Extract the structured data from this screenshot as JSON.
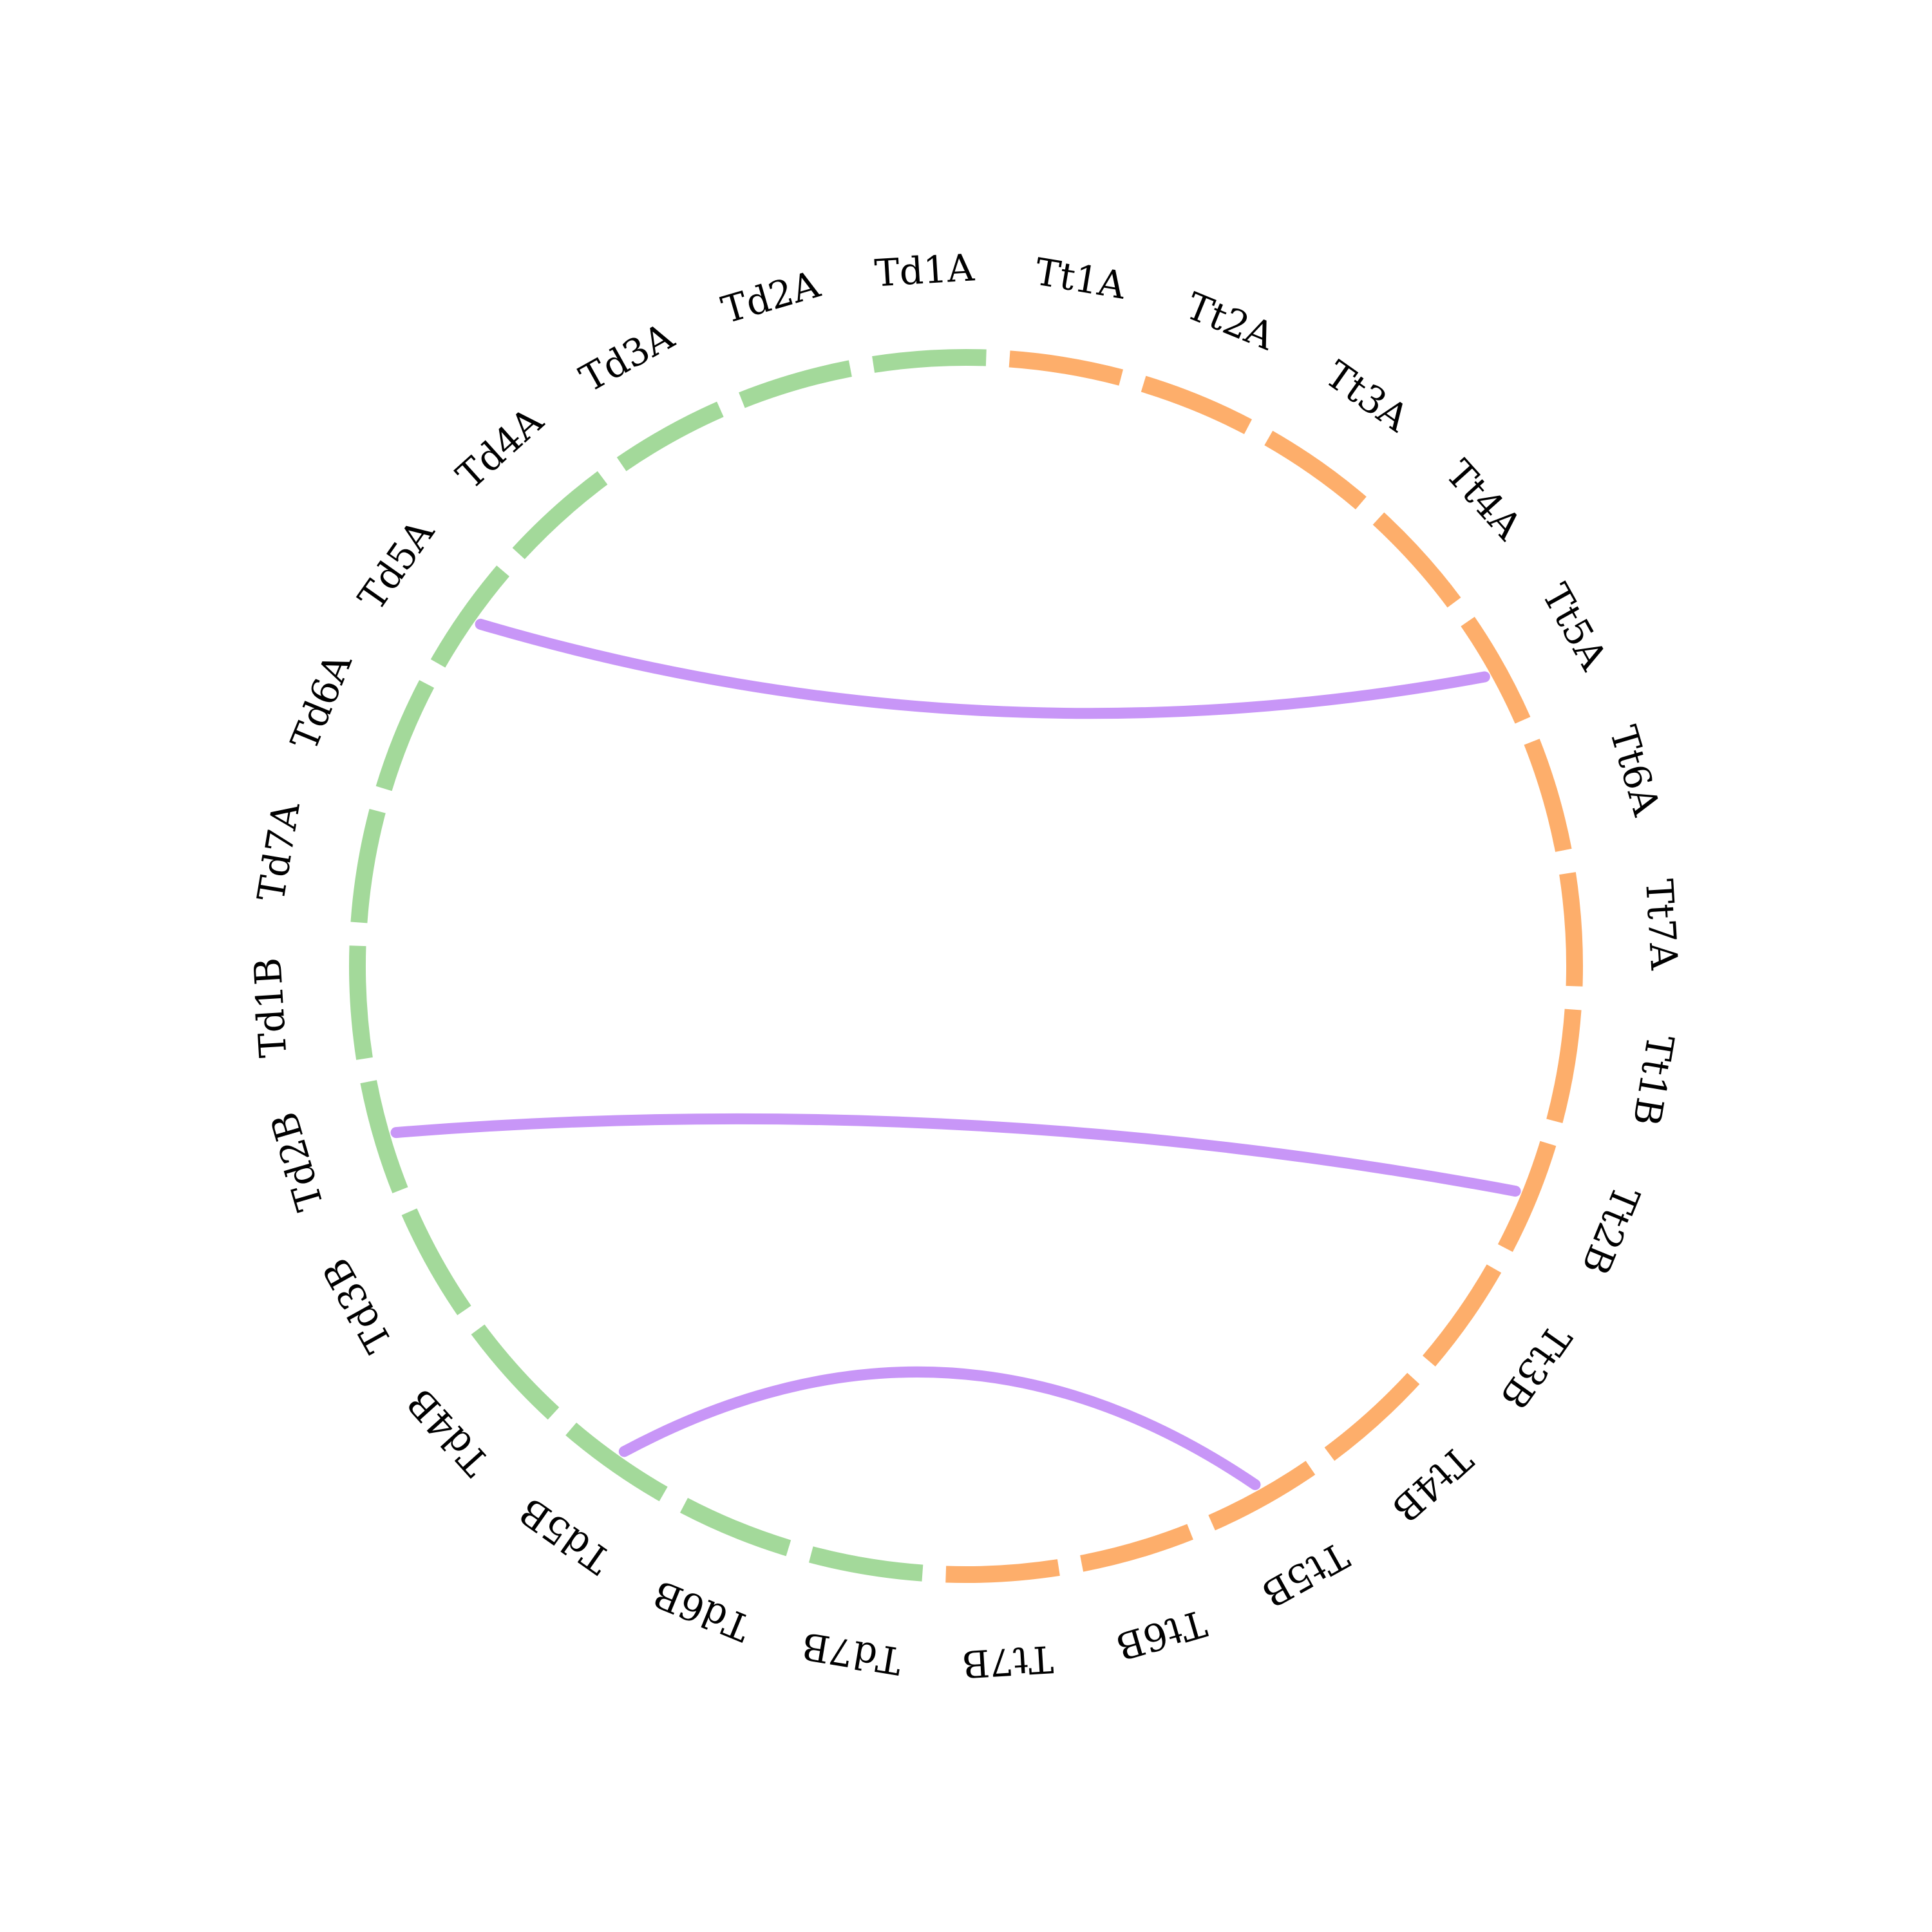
{
  "diagram": {
    "groups": [
      {
        "name": "Td",
        "color": "#a3d99a"
      },
      {
        "name": "Tt",
        "color": "#fdae6b"
      }
    ],
    "link_color": "#c896f7",
    "segments": [
      {
        "label": "Tt1A",
        "group": "Tt"
      },
      {
        "label": "Tt2A",
        "group": "Tt"
      },
      {
        "label": "Tt3A",
        "group": "Tt"
      },
      {
        "label": "Tt4A",
        "group": "Tt"
      },
      {
        "label": "Tt5A",
        "group": "Tt"
      },
      {
        "label": "Tt6A",
        "group": "Tt"
      },
      {
        "label": "Tt7A",
        "group": "Tt"
      },
      {
        "label": "Tt1B",
        "group": "Tt"
      },
      {
        "label": "Tt2B",
        "group": "Tt"
      },
      {
        "label": "Tt3B",
        "group": "Tt"
      },
      {
        "label": "Tt4B",
        "group": "Tt"
      },
      {
        "label": "Tt5B",
        "group": "Tt"
      },
      {
        "label": "Tt6B",
        "group": "Tt"
      },
      {
        "label": "Tt7B",
        "group": "Tt"
      },
      {
        "label": "Td7B",
        "group": "Td"
      },
      {
        "label": "Td6B",
        "group": "Td"
      },
      {
        "label": "Td5B",
        "group": "Td"
      },
      {
        "label": "Td4B",
        "group": "Td"
      },
      {
        "label": "Td3B",
        "group": "Td"
      },
      {
        "label": "Td2B",
        "group": "Td"
      },
      {
        "label": "Td1B",
        "group": "Td"
      },
      {
        "label": "Td7A",
        "group": "Td"
      },
      {
        "label": "Td6A",
        "group": "Td"
      },
      {
        "label": "Td5A",
        "group": "Td"
      },
      {
        "label": "Td4A",
        "group": "Td"
      },
      {
        "label": "Td3A",
        "group": "Td"
      },
      {
        "label": "Td2A",
        "group": "Td"
      },
      {
        "label": "Td1A",
        "group": "Td"
      }
    ],
    "links": [
      {
        "source": "Td5A",
        "target": "Tt5A"
      },
      {
        "source": "Td2B",
        "target": "Tt2B"
      },
      {
        "source": "Td5B",
        "target": "Tt5B"
      }
    ]
  }
}
